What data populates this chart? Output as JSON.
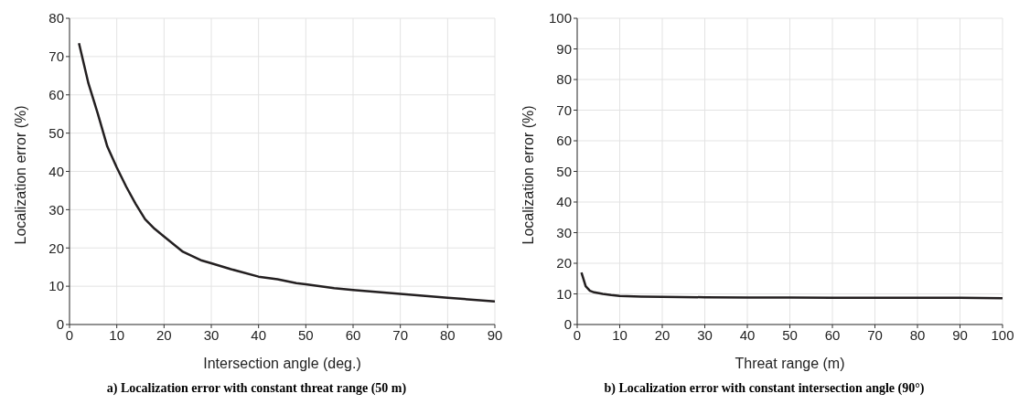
{
  "chart_data": [
    {
      "type": "line",
      "title": "a) Localization error with constant threat range (50 m)",
      "xlabel": "Intersection angle (deg.)",
      "ylabel": "Localization error (%)",
      "x": [
        2,
        4,
        6,
        8,
        10,
        12,
        14,
        16,
        18,
        20,
        24,
        28,
        30,
        34,
        40,
        44,
        48,
        50,
        56,
        60,
        70,
        80,
        90
      ],
      "series": [
        {
          "color": "#231f20",
          "values": [
            73.5,
            63,
            55,
            46.5,
            41,
            36,
            31.5,
            27.5,
            25,
            23,
            19,
            16.7,
            16,
            14.5,
            12.5,
            11.8,
            10.8,
            10.5,
            9.5,
            9,
            8,
            7,
            6
          ]
        }
      ],
      "xlim": [
        0,
        90
      ],
      "xticks": [
        0,
        10,
        20,
        30,
        40,
        50,
        60,
        70,
        80,
        90
      ],
      "ylim": [
        0,
        80
      ],
      "yticks": [
        0,
        10,
        20,
        30,
        40,
        50,
        60,
        70,
        80
      ],
      "grid": true,
      "marker": "none",
      "line_style": "solid"
    },
    {
      "type": "line",
      "title": "b) Localization error with constant intersection angle (90°)",
      "xlabel": "Threat range (m)",
      "ylabel": "Localization error (%)",
      "x": [
        1,
        2,
        3,
        4,
        6,
        8,
        10,
        15,
        20,
        30,
        40,
        50,
        60,
        70,
        80,
        90,
        100
      ],
      "series": [
        {
          "color": "#231f20",
          "values": [
            17,
            12.5,
            11,
            10.5,
            10,
            9.6,
            9.3,
            9.1,
            9,
            8.9,
            8.8,
            8.8,
            8.7,
            8.7,
            8.7,
            8.7,
            8.6
          ]
        }
      ],
      "xlim": [
        0,
        100
      ],
      "xticks": [
        0,
        10,
        20,
        30,
        40,
        50,
        60,
        70,
        80,
        90,
        100
      ],
      "ylim": [
        0,
        100
      ],
      "yticks": [
        0,
        10,
        20,
        30,
        40,
        50,
        60,
        70,
        80,
        90,
        100
      ],
      "grid": true,
      "marker": "none",
      "line_style": "solid"
    }
  ]
}
